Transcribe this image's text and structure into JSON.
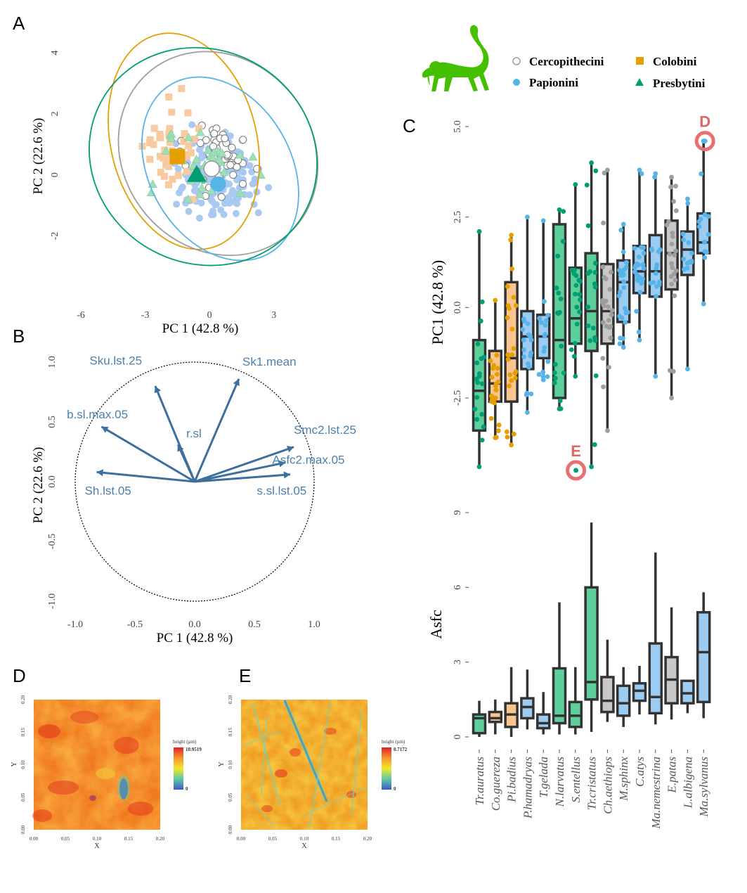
{
  "panels": {
    "A": "A",
    "B": "B",
    "C": "C",
    "D": "D",
    "E": "E"
  },
  "colors": {
    "Cercopithecini": "#9e9e9e",
    "Colobini": "#e69f00",
    "Colobini_light": "#f9c9a0",
    "Papionini": "#56b4e9",
    "Papionini_light": "#a9c8f2",
    "Presbytini": "#009e73",
    "Presbytini_light": "#9de0b8",
    "box_green": "#5ccf9a",
    "box_orange": "#fcc48f",
    "box_blue": "#9cccf2",
    "box_gray": "#c8c8c8",
    "callout": "#e87070",
    "monkey": "#44c000"
  },
  "legend": {
    "icon": "monkey-icon",
    "items": [
      {
        "label": "Cercopithecini",
        "marker": "open-circle"
      },
      {
        "label": "Colobini",
        "marker": "square"
      },
      {
        "label": "Papionini",
        "marker": "circle"
      },
      {
        "label": "Presbytini",
        "marker": "triangle"
      }
    ]
  },
  "chart_data": [
    {
      "id": "A",
      "type": "scatter",
      "title": "",
      "xlabel": "PC 1 (42.8 %)",
      "ylabel": "PC 2 (22.6 %)",
      "xticks": [
        "-6",
        "-3",
        "0",
        "3"
      ],
      "yticks": [
        "4",
        "2",
        "0",
        "-2"
      ],
      "xlim": [
        -6.1,
        5.4
      ],
      "ylim": [
        -3.6,
        4.3
      ],
      "grid": false,
      "centroids": [
        {
          "group": "Colobini",
          "x": -1.5,
          "y": 0.6
        },
        {
          "group": "Presbytini",
          "x": -0.6,
          "y": 0.0
        },
        {
          "group": "Cercopithecini",
          "x": 0.1,
          "y": 0.2
        },
        {
          "group": "Papionini",
          "x": 0.4,
          "y": -0.3
        }
      ],
      "ellipses": [
        {
          "group": "Colobini",
          "cx": -1.2,
          "cy": 1.1,
          "rx": 3.4,
          "ry": 3.6,
          "rot": -14
        },
        {
          "group": "Cercopithecini",
          "cx": 0.4,
          "cy": 0.7,
          "rx": 4.4,
          "ry": 3.5,
          "rot": -40
        },
        {
          "group": "Papionini",
          "cx": 0.5,
          "cy": 0.2,
          "rx": 3.3,
          "ry": 3.2,
          "rot": -30
        },
        {
          "group": "Presbytini",
          "cx": -0.3,
          "cy": 0.6,
          "rx": 5.4,
          "ry": 3.5,
          "rot": 28
        }
      ]
    },
    {
      "id": "B",
      "type": "scatter",
      "title": "",
      "xlabel": "PC 1 (42.8 %)",
      "ylabel": "PC 2 (22.6 %)",
      "xticks": [
        "-1.0",
        "-0.5",
        "0.0",
        "0.5",
        "1.0"
      ],
      "yticks": [
        "1.0",
        "0.5",
        "0.0",
        "-0.5",
        "-1.0"
      ],
      "xlim": [
        -1.0,
        1.0
      ],
      "ylim": [
        -1.0,
        1.0
      ],
      "grid": false,
      "loadings": [
        {
          "name": "Sku.lst.25",
          "x": -0.33,
          "y": 0.8
        },
        {
          "name": "Sk1.mean",
          "x": 0.37,
          "y": 0.86
        },
        {
          "name": "b.sl.max.05",
          "x": -0.78,
          "y": 0.46
        },
        {
          "name": "r.sl",
          "x": -0.14,
          "y": 0.31
        },
        {
          "name": "Smc2.lst.25",
          "x": 0.83,
          "y": 0.29
        },
        {
          "name": "Asfc2.max.05",
          "x": 0.76,
          "y": 0.16
        },
        {
          "name": "Sh.lst.05",
          "x": -0.82,
          "y": 0.08
        },
        {
          "name": "s.sl.lst.05",
          "x": 0.8,
          "y": 0.06
        }
      ]
    },
    {
      "id": "C-top",
      "type": "box",
      "title": "",
      "xlabel": "",
      "ylabel": "PC1 (42.8 %)",
      "yticks": [
        "5.0",
        "2.5",
        "0.0",
        "-2.5"
      ],
      "ylim": [
        -4.8,
        5.2
      ],
      "grid": false,
      "callouts": [
        {
          "label": "D",
          "species": "Ma.sylvanus",
          "y": 4.6
        },
        {
          "label": "E",
          "species": "Tr.cristatus",
          "y": -4.5
        }
      ],
      "categories": [
        "Tr.auratus",
        "Co.guereza",
        "Pi.badius",
        "P.hamadryas",
        "T.gelada",
        "N.larvatus",
        "S.entellus",
        "Tr.cristatus",
        "Ch.aethiops",
        "M.sphinx",
        "C.atys",
        "Ma.nemestrina",
        "E.patas",
        "L.albigena",
        "Ma.sylvanus"
      ],
      "groups": [
        "Presbytini",
        "Colobini",
        "Colobini",
        "Papionini",
        "Papionini",
        "Presbytini",
        "Presbytini",
        "Presbytini",
        "Cercopithecini",
        "Papionini",
        "Papionini",
        "Papionini",
        "Cercopithecini",
        "Papionini",
        "Papionini"
      ],
      "stats": [
        {
          "lo": -4.4,
          "q1": -3.4,
          "med": -2.3,
          "q3": -0.9,
          "hi": 2.1
        },
        {
          "lo": -3.6,
          "q1": -2.6,
          "med": -2.1,
          "q3": -1.2,
          "hi": 0.2
        },
        {
          "lo": -3.8,
          "q1": -2.6,
          "med": -1.4,
          "q3": 0.7,
          "hi": 2.0
        },
        {
          "lo": -2.9,
          "q1": -1.7,
          "med": -0.8,
          "q3": -0.1,
          "hi": 2.5
        },
        {
          "lo": -2.0,
          "q1": -1.4,
          "med": -0.8,
          "q3": -0.2,
          "hi": 2.4
        },
        {
          "lo": -2.8,
          "q1": -2.5,
          "med": -0.9,
          "q3": 2.3,
          "hi": 2.7
        },
        {
          "lo": -1.9,
          "q1": -1.0,
          "med": -0.3,
          "q3": 1.1,
          "hi": 3.4
        },
        {
          "lo": -4.4,
          "q1": -1.2,
          "med": -0.1,
          "q3": 1.5,
          "hi": 4.0
        },
        {
          "lo": -3.4,
          "q1": -1.0,
          "med": -0.1,
          "q3": 1.2,
          "hi": 3.8
        },
        {
          "lo": -1.1,
          "q1": -0.4,
          "med": 0.7,
          "q3": 1.3,
          "hi": 2.3
        },
        {
          "lo": -0.9,
          "q1": 0.4,
          "med": 1.0,
          "q3": 1.7,
          "hi": 3.8
        },
        {
          "lo": -1.9,
          "q1": 0.3,
          "med": 1.0,
          "q3": 2.0,
          "hi": 3.7
        },
        {
          "lo": -2.5,
          "q1": 0.5,
          "med": 1.5,
          "q3": 2.4,
          "hi": 3.6
        },
        {
          "lo": -1.7,
          "q1": 0.9,
          "med": 1.6,
          "q3": 2.1,
          "hi": 3.0
        },
        {
          "lo": 0.1,
          "q1": 1.5,
          "med": 1.8,
          "q3": 2.6,
          "hi": 4.6
        }
      ]
    },
    {
      "id": "C-bottom",
      "type": "box",
      "title": "",
      "xlabel": "",
      "ylabel": "Asfc",
      "yticks": [
        "9",
        "6",
        "3",
        "0"
      ],
      "ylim": [
        -0.3,
        9.4
      ],
      "grid": false,
      "categories": [
        "Tr.auratus",
        "Co.guereza",
        "Pi.badius",
        "P.hamadryas",
        "T.gelada",
        "N.larvatus",
        "S.entellus",
        "Tr.cristatus",
        "Ch.aethiops",
        "M.sphinx",
        "C.atys",
        "Ma.nemestrina",
        "E.patas",
        "L.albigena",
        "Ma.sylvanus"
      ],
      "stats": [
        {
          "lo": 0.0,
          "q1": 0.15,
          "med": 0.75,
          "q3": 0.9,
          "hi": 1.45
        },
        {
          "lo": 0.1,
          "q1": 0.6,
          "med": 0.75,
          "q3": 1.0,
          "hi": 1.5
        },
        {
          "lo": 0.0,
          "q1": 0.4,
          "med": 0.9,
          "q3": 1.35,
          "hi": 2.8
        },
        {
          "lo": 0.3,
          "q1": 0.75,
          "med": 1.2,
          "q3": 1.55,
          "hi": 2.7
        },
        {
          "lo": 0.1,
          "q1": 0.35,
          "med": 0.55,
          "q3": 0.9,
          "hi": 1.8
        },
        {
          "lo": 0.1,
          "q1": 0.55,
          "med": 0.85,
          "q3": 2.75,
          "hi": 5.4
        },
        {
          "lo": 0.1,
          "q1": 0.4,
          "med": 0.85,
          "q3": 1.4,
          "hi": 2.8
        },
        {
          "lo": 0.2,
          "q1": 1.5,
          "med": 2.2,
          "q3": 6.0,
          "hi": 8.6
        },
        {
          "lo": 0.6,
          "q1": 1.0,
          "med": 1.45,
          "q3": 2.4,
          "hi": 3.9
        },
        {
          "lo": 0.4,
          "q1": 0.85,
          "med": 1.35,
          "q3": 2.05,
          "hi": 2.8
        },
        {
          "lo": 0.9,
          "q1": 1.45,
          "med": 1.85,
          "q3": 2.15,
          "hi": 2.85
        },
        {
          "lo": 0.5,
          "q1": 0.95,
          "med": 1.6,
          "q3": 3.75,
          "hi": 7.4
        },
        {
          "lo": 0.7,
          "q1": 1.35,
          "med": 2.3,
          "q3": 3.2,
          "hi": 5.2
        },
        {
          "lo": 0.95,
          "q1": 1.35,
          "med": 1.75,
          "q3": 2.25,
          "hi": 2.3
        },
        {
          "lo": 0.75,
          "q1": 1.4,
          "med": 3.4,
          "q3": 5.0,
          "hi": 5.8
        }
      ]
    }
  ],
  "heatmaps": [
    {
      "id": "D",
      "legend_title": "height (µm)",
      "max": "10.9519",
      "min": "0",
      "xlabel": "X",
      "ylabel": "Y",
      "xticks": [
        "0.00",
        "0.05",
        "0.10",
        "0.15",
        "0.20"
      ],
      "yticks": [
        "0.20",
        "0.15",
        "0.10",
        "0.05",
        "0.00"
      ]
    },
    {
      "id": "E",
      "legend_title": "height (µm)",
      "max": "0.7172",
      "min": "0",
      "xlabel": "X",
      "ylabel": "Y",
      "xticks": [
        "0.00",
        "0.05",
        "0.10",
        "0.15",
        "0.20"
      ],
      "yticks": [
        "0.20",
        "0.15",
        "0.10",
        "0.05",
        "0.00"
      ]
    }
  ]
}
